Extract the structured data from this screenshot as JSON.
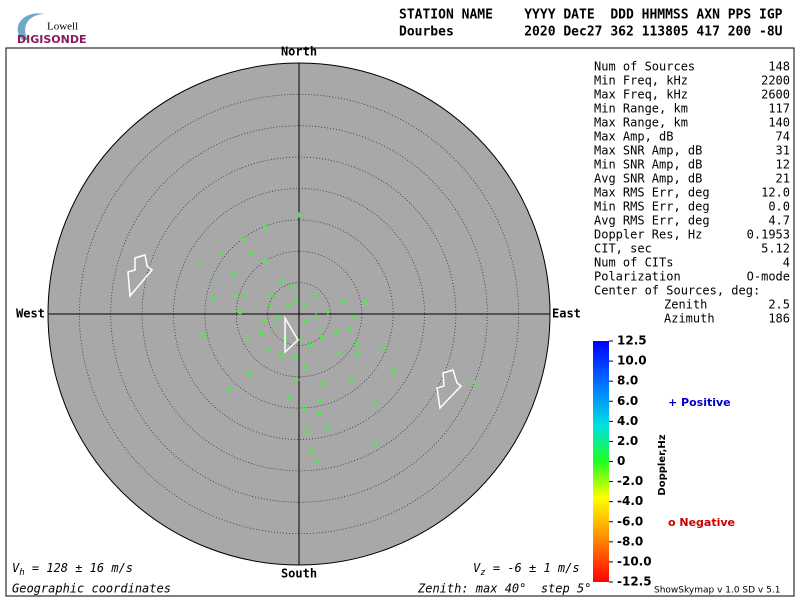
{
  "logo": {
    "top": "Lowell",
    "name": "DIGISONDE"
  },
  "header": {
    "row1": "STATION NAME    YYYY DATE  DDD HHMMSS AXN PPS IGP",
    "row2": "Dourbes         2020 Dec27 362 113805 417 200 -8U"
  },
  "compass": {
    "north": "North",
    "south": "South",
    "west": "West",
    "east": "East"
  },
  "stats": [
    [
      "Num of Sources",
      "148"
    ],
    [
      "Min Freq, kHz",
      "2200"
    ],
    [
      "Max Freq, kHz",
      "2600"
    ],
    [
      "Min Range, km",
      "117"
    ],
    [
      "Max Range, km",
      "140"
    ],
    [
      "Max Amp, dB",
      "74"
    ],
    [
      "Max SNR Amp, dB",
      "31"
    ],
    [
      "Min SNR Amp, dB",
      "12"
    ],
    [
      "Avg SNR Amp, dB",
      "21"
    ],
    [
      "Max RMS Err, deg",
      "12.0"
    ],
    [
      "Min RMS Err, deg",
      "0.0"
    ],
    [
      "Avg RMS Err, deg",
      "4.7"
    ],
    [
      "Doppler Res, Hz",
      "0.1953"
    ],
    [
      "CIT, sec",
      "5.12"
    ],
    [
      "Num of CITs",
      "4"
    ],
    [
      "Polarization",
      "O-mode"
    ]
  ],
  "center": {
    "title": "Center of Sources, deg:",
    "zenith_label": "Zenith",
    "zenith": "2.5",
    "azimuth_label": "Azimuth",
    "azimuth": "186"
  },
  "colorbar": {
    "title": "Doppler,Hz",
    "labels": [
      "12.5",
      "10.0",
      "8.0",
      "6.0",
      "4.0",
      "2.0",
      "0",
      "-2.0",
      "-4.0",
      "-6.0",
      "-8.0",
      "-10.0",
      "-12.5"
    ]
  },
  "legend": {
    "positive": "+ Positive",
    "negative": "o Negative"
  },
  "footer": {
    "vh": {
      "symbol": "V",
      "sub": "h",
      "text": " = 128 ± 16 m/s"
    },
    "vz": {
      "symbol": "V",
      "sub": "z",
      "text": " = -6 ± 1 m/s"
    },
    "coords": "Geographic coordinates",
    "zenith": "Zenith: max 40°  step 5°",
    "version": "ShowSkymap v 1.0   SD v 5.1"
  },
  "sources": {
    "color": "#33ff33",
    "east": [
      0,
      -5.4,
      -8.9,
      -12.3,
      -7.5,
      -5.3,
      -15.6,
      -10.4,
      -12.7,
      -13.7,
      -10.0,
      -8.6,
      -4.5,
      -2.7,
      -1.1,
      -0.5,
      0.8,
      -1.9,
      -3.8,
      -6.1,
      -8.3,
      -15.1,
      -4.9,
      -2.9,
      -0.5,
      1.8,
      3.7,
      5.9,
      8.1,
      10.7,
      8.9,
      9.4,
      6.4,
      13.4,
      15.0,
      15.3,
      28.0,
      8.4,
      3.8,
      -0.3,
      -11.0,
      -8.0,
      3.2,
      0.8,
      12.1,
      3.3,
      4.6,
      1.4,
      12.1,
      2.1,
      3.0,
      -1.6,
      2.7,
      1.1,
      3.3,
      -3.3,
      -5.6,
      -9.4,
      -4.6,
      2.5,
      4.6,
      7.0,
      0.2,
      -2.2,
      1.1,
      9.2
    ],
    "north": [
      15.8,
      13.7,
      11.8,
      9.4,
      9.7,
      8.3,
      8.1,
      6.5,
      4.9,
      2.5,
      2.9,
      2.7,
      3.0,
      5.1,
      4.3,
      2.2,
      1.3,
      1.4,
      -1.8,
      -3.0,
      -4.1,
      -3.3,
      -5.7,
      -6.5,
      -6.8,
      -4.9,
      -3.8,
      -2.9,
      -2.5,
      1.8,
      -0.6,
      -6.2,
      -6.2,
      -5.3,
      -8.9,
      -9.2,
      -11.1,
      -10.5,
      -11.1,
      -10.5,
      -12.1,
      -9.6,
      -14.0,
      -15.1,
      -14.3,
      -15.8,
      -18.0,
      -18.6,
      -20.7,
      -22.0,
      -23.6,
      -13.4,
      -0.3,
      -1.0,
      -2.5,
      -0.6,
      -1.0,
      0.3,
      1.4,
      3.0,
      0.3,
      1.9,
      -4.1,
      -4.1,
      -8.6,
      -4.9
    ],
    "marker": [
      "+",
      "o",
      "o",
      "+",
      "o",
      "o",
      "+",
      "o",
      "+",
      "o",
      "+",
      "+",
      "o",
      "o",
      "+",
      "+",
      "+",
      "o",
      "+",
      "o",
      "+",
      "o",
      "+",
      "o",
      "+",
      "+",
      "o",
      "+",
      "o",
      "+",
      "+",
      "o",
      "+",
      "o",
      "+",
      "+",
      "+",
      "o",
      "o",
      "+",
      "o",
      "o",
      "o",
      "+",
      "o",
      "o",
      "o",
      "o",
      "o",
      "o",
      "o",
      "o",
      "+",
      "+",
      "+",
      "o",
      "+",
      "o",
      "+",
      "o",
      "+",
      "+",
      "+",
      "o",
      "o",
      "+"
    ]
  },
  "plot": {
    "zenith_max": 40,
    "step": 5
  }
}
